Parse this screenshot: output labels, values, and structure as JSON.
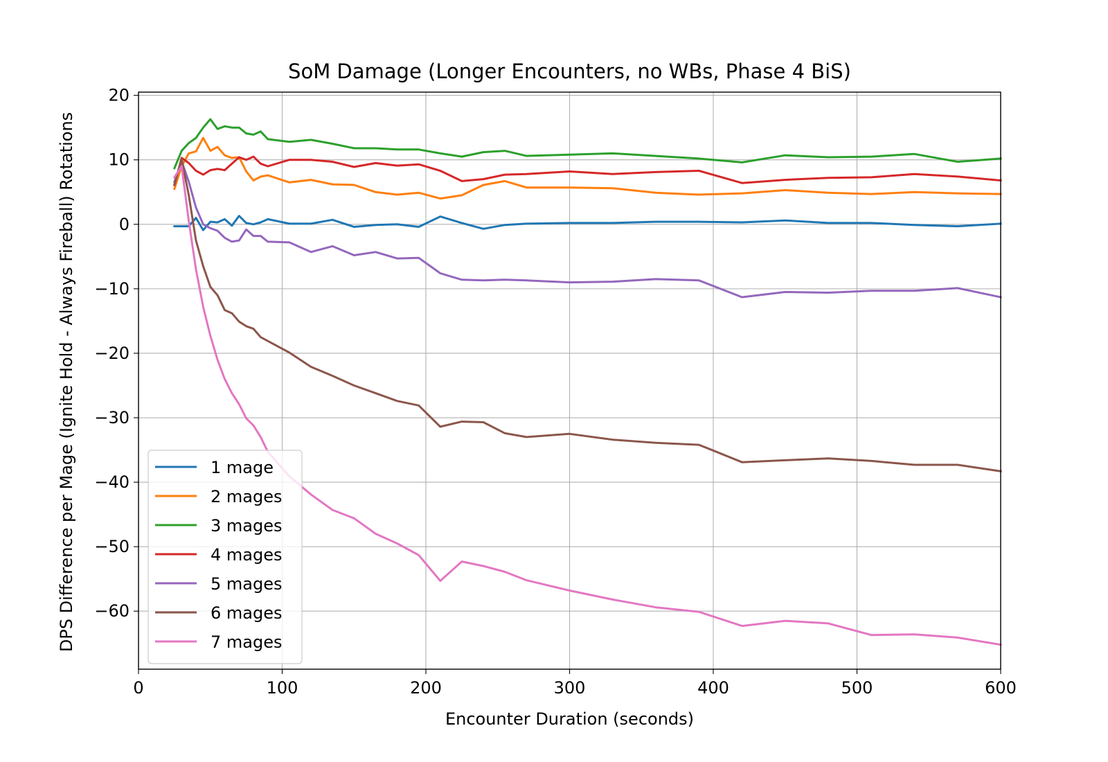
{
  "chart_data": {
    "type": "line",
    "title": "SoM Damage (Longer Encounters, no WBs, Phase 4 BiS)",
    "xlabel": "Encounter Duration (seconds)",
    "ylabel": "DPS Difference per Mage (Ignite Hold - Always Fireball) Rotations",
    "xlim": [
      0,
      600
    ],
    "ylim": [
      -69,
      20.5
    ],
    "xticks": [
      0,
      100,
      200,
      300,
      400,
      500,
      600
    ],
    "yticks": [
      20,
      10,
      0,
      -10,
      -20,
      -30,
      -40,
      -50,
      -60
    ],
    "xtick_labels": [
      "0",
      "100",
      "200",
      "300",
      "400",
      "500",
      "600"
    ],
    "ytick_labels": [
      "20",
      "10",
      "0",
      "−10",
      "−20",
      "−30",
      "−40",
      "−50",
      "−60"
    ],
    "grid": true,
    "legend_position": "lower-left",
    "series": [
      {
        "name": "1 mage",
        "color": "#1f77b4",
        "x": [
          25,
          30,
          35,
          40,
          45,
          50,
          55,
          60,
          65,
          70,
          75,
          80,
          85,
          90,
          105,
          120,
          135,
          150,
          165,
          180,
          195,
          210,
          225,
          240,
          255,
          270,
          300,
          330,
          360,
          390,
          420,
          450,
          480,
          510,
          540,
          570,
          600
        ],
        "y": [
          -0.3,
          -0.3,
          -0.3,
          1.0,
          -0.9,
          0.4,
          0.3,
          0.8,
          -0.2,
          1.3,
          0.2,
          0.0,
          0.3,
          0.8,
          0.1,
          0.1,
          0.7,
          -0.4,
          -0.1,
          0.0,
          -0.4,
          1.2,
          0.2,
          -0.7,
          -0.1,
          0.1,
          0.2,
          0.2,
          0.4,
          0.4,
          0.3,
          0.6,
          0.2,
          0.2,
          -0.1,
          -0.3,
          0.1
        ]
      },
      {
        "name": "2 mages",
        "color": "#ff7f0e",
        "x": [
          25,
          30,
          35,
          40,
          45,
          50,
          55,
          60,
          65,
          70,
          75,
          80,
          85,
          90,
          105,
          120,
          135,
          150,
          165,
          180,
          195,
          210,
          225,
          240,
          255,
          270,
          300,
          330,
          360,
          390,
          420,
          450,
          480,
          510,
          540,
          570,
          600
        ],
        "y": [
          5.5,
          9.0,
          11.0,
          11.3,
          13.4,
          11.4,
          12.0,
          10.7,
          10.3,
          10.4,
          8.2,
          6.8,
          7.4,
          7.6,
          6.5,
          6.9,
          6.2,
          6.1,
          5.0,
          4.6,
          4.9,
          4.0,
          4.5,
          6.1,
          6.7,
          5.7,
          5.7,
          5.6,
          4.9,
          4.6,
          4.8,
          5.3,
          4.9,
          4.7,
          5.0,
          4.8,
          4.7
        ]
      },
      {
        "name": "3 mages",
        "color": "#2ca02c",
        "x": [
          25,
          30,
          35,
          40,
          45,
          50,
          55,
          60,
          65,
          70,
          75,
          80,
          85,
          90,
          105,
          120,
          135,
          150,
          165,
          180,
          195,
          210,
          225,
          240,
          255,
          270,
          300,
          330,
          360,
          390,
          420,
          450,
          480,
          510,
          540,
          570,
          600
        ],
        "y": [
          8.7,
          11.4,
          12.6,
          13.4,
          15.0,
          16.3,
          14.8,
          15.2,
          15.0,
          15.0,
          14.1,
          13.9,
          14.4,
          13.2,
          12.8,
          13.1,
          12.5,
          11.8,
          11.8,
          11.6,
          11.6,
          11.0,
          10.5,
          11.2,
          11.4,
          10.6,
          10.8,
          11.0,
          10.6,
          10.2,
          9.6,
          10.7,
          10.4,
          10.5,
          10.9,
          9.7,
          10.2
        ]
      },
      {
        "name": "4 mages",
        "color": "#d62728",
        "x": [
          25,
          30,
          35,
          40,
          45,
          50,
          55,
          60,
          65,
          70,
          75,
          80,
          85,
          90,
          105,
          120,
          135,
          150,
          165,
          180,
          195,
          210,
          225,
          240,
          255,
          270,
          300,
          330,
          360,
          390,
          420,
          450,
          480,
          510,
          540,
          570,
          600
        ],
        "y": [
          6.1,
          10.3,
          9.5,
          8.3,
          7.7,
          8.4,
          8.6,
          8.4,
          9.4,
          10.4,
          10.0,
          10.5,
          9.4,
          9.0,
          10.0,
          10.0,
          9.7,
          8.9,
          9.5,
          9.1,
          9.3,
          8.3,
          6.7,
          7.0,
          7.7,
          7.8,
          8.2,
          7.8,
          8.1,
          8.3,
          6.4,
          6.9,
          7.2,
          7.3,
          7.8,
          7.4,
          6.8
        ]
      },
      {
        "name": "5 mages",
        "color": "#9467bd",
        "x": [
          25,
          30,
          35,
          40,
          45,
          50,
          55,
          60,
          65,
          70,
          75,
          80,
          85,
          90,
          105,
          120,
          135,
          150,
          165,
          180,
          195,
          210,
          225,
          240,
          255,
          270,
          300,
          330,
          360,
          390,
          420,
          450,
          480,
          510,
          540,
          570,
          600
        ],
        "y": [
          6.6,
          9.8,
          6.6,
          2.6,
          0.0,
          -0.6,
          -1.0,
          -2.1,
          -2.7,
          -2.5,
          -0.8,
          -1.8,
          -1.8,
          -2.7,
          -2.8,
          -4.3,
          -3.4,
          -4.8,
          -4.3,
          -5.3,
          -5.2,
          -7.6,
          -8.6,
          -8.7,
          -8.6,
          -8.7,
          -9.0,
          -8.9,
          -8.5,
          -8.7,
          -11.3,
          -10.5,
          -10.6,
          -10.3,
          -10.3,
          -9.9,
          -11.3
        ]
      },
      {
        "name": "6 mages",
        "color": "#8c564b",
        "x": [
          25,
          30,
          35,
          40,
          45,
          50,
          55,
          60,
          65,
          70,
          75,
          80,
          85,
          90,
          105,
          120,
          135,
          150,
          165,
          180,
          195,
          210,
          225,
          240,
          255,
          270,
          300,
          330,
          360,
          390,
          420,
          450,
          480,
          510,
          540,
          570,
          600
        ],
        "y": [
          6.2,
          10.1,
          4.5,
          -2.5,
          -6.5,
          -9.7,
          -11.0,
          -13.3,
          -13.8,
          -15.1,
          -15.8,
          -16.2,
          -17.5,
          -18.1,
          -19.9,
          -22.1,
          -23.5,
          -25.0,
          -26.2,
          -27.4,
          -28.1,
          -31.4,
          -30.6,
          -30.7,
          -32.4,
          -33.0,
          -32.5,
          -33.4,
          -33.9,
          -34.2,
          -36.9,
          -36.6,
          -36.3,
          -36.7,
          -37.3,
          -37.3,
          -38.3
        ]
      },
      {
        "name": "7 mages",
        "color": "#e377c2",
        "x": [
          25,
          30,
          35,
          40,
          45,
          50,
          55,
          60,
          65,
          70,
          75,
          80,
          85,
          90,
          105,
          120,
          135,
          150,
          165,
          180,
          195,
          210,
          225,
          240,
          255,
          270,
          300,
          330,
          360,
          390,
          420,
          450,
          480,
          510,
          540,
          570,
          600
        ],
        "y": [
          7.3,
          9.0,
          0.5,
          -7.0,
          -12.8,
          -17.3,
          -21.0,
          -24.0,
          -26.2,
          -27.9,
          -30.1,
          -31.2,
          -33.0,
          -35.3,
          -39.1,
          -41.9,
          -44.3,
          -45.6,
          -48.0,
          -49.5,
          -51.3,
          -55.3,
          -52.3,
          -53.0,
          -53.9,
          -55.2,
          -56.8,
          -58.2,
          -59.4,
          -60.1,
          -62.3,
          -61.5,
          -61.9,
          -63.7,
          -63.6,
          -64.1,
          -65.2
        ]
      }
    ]
  }
}
